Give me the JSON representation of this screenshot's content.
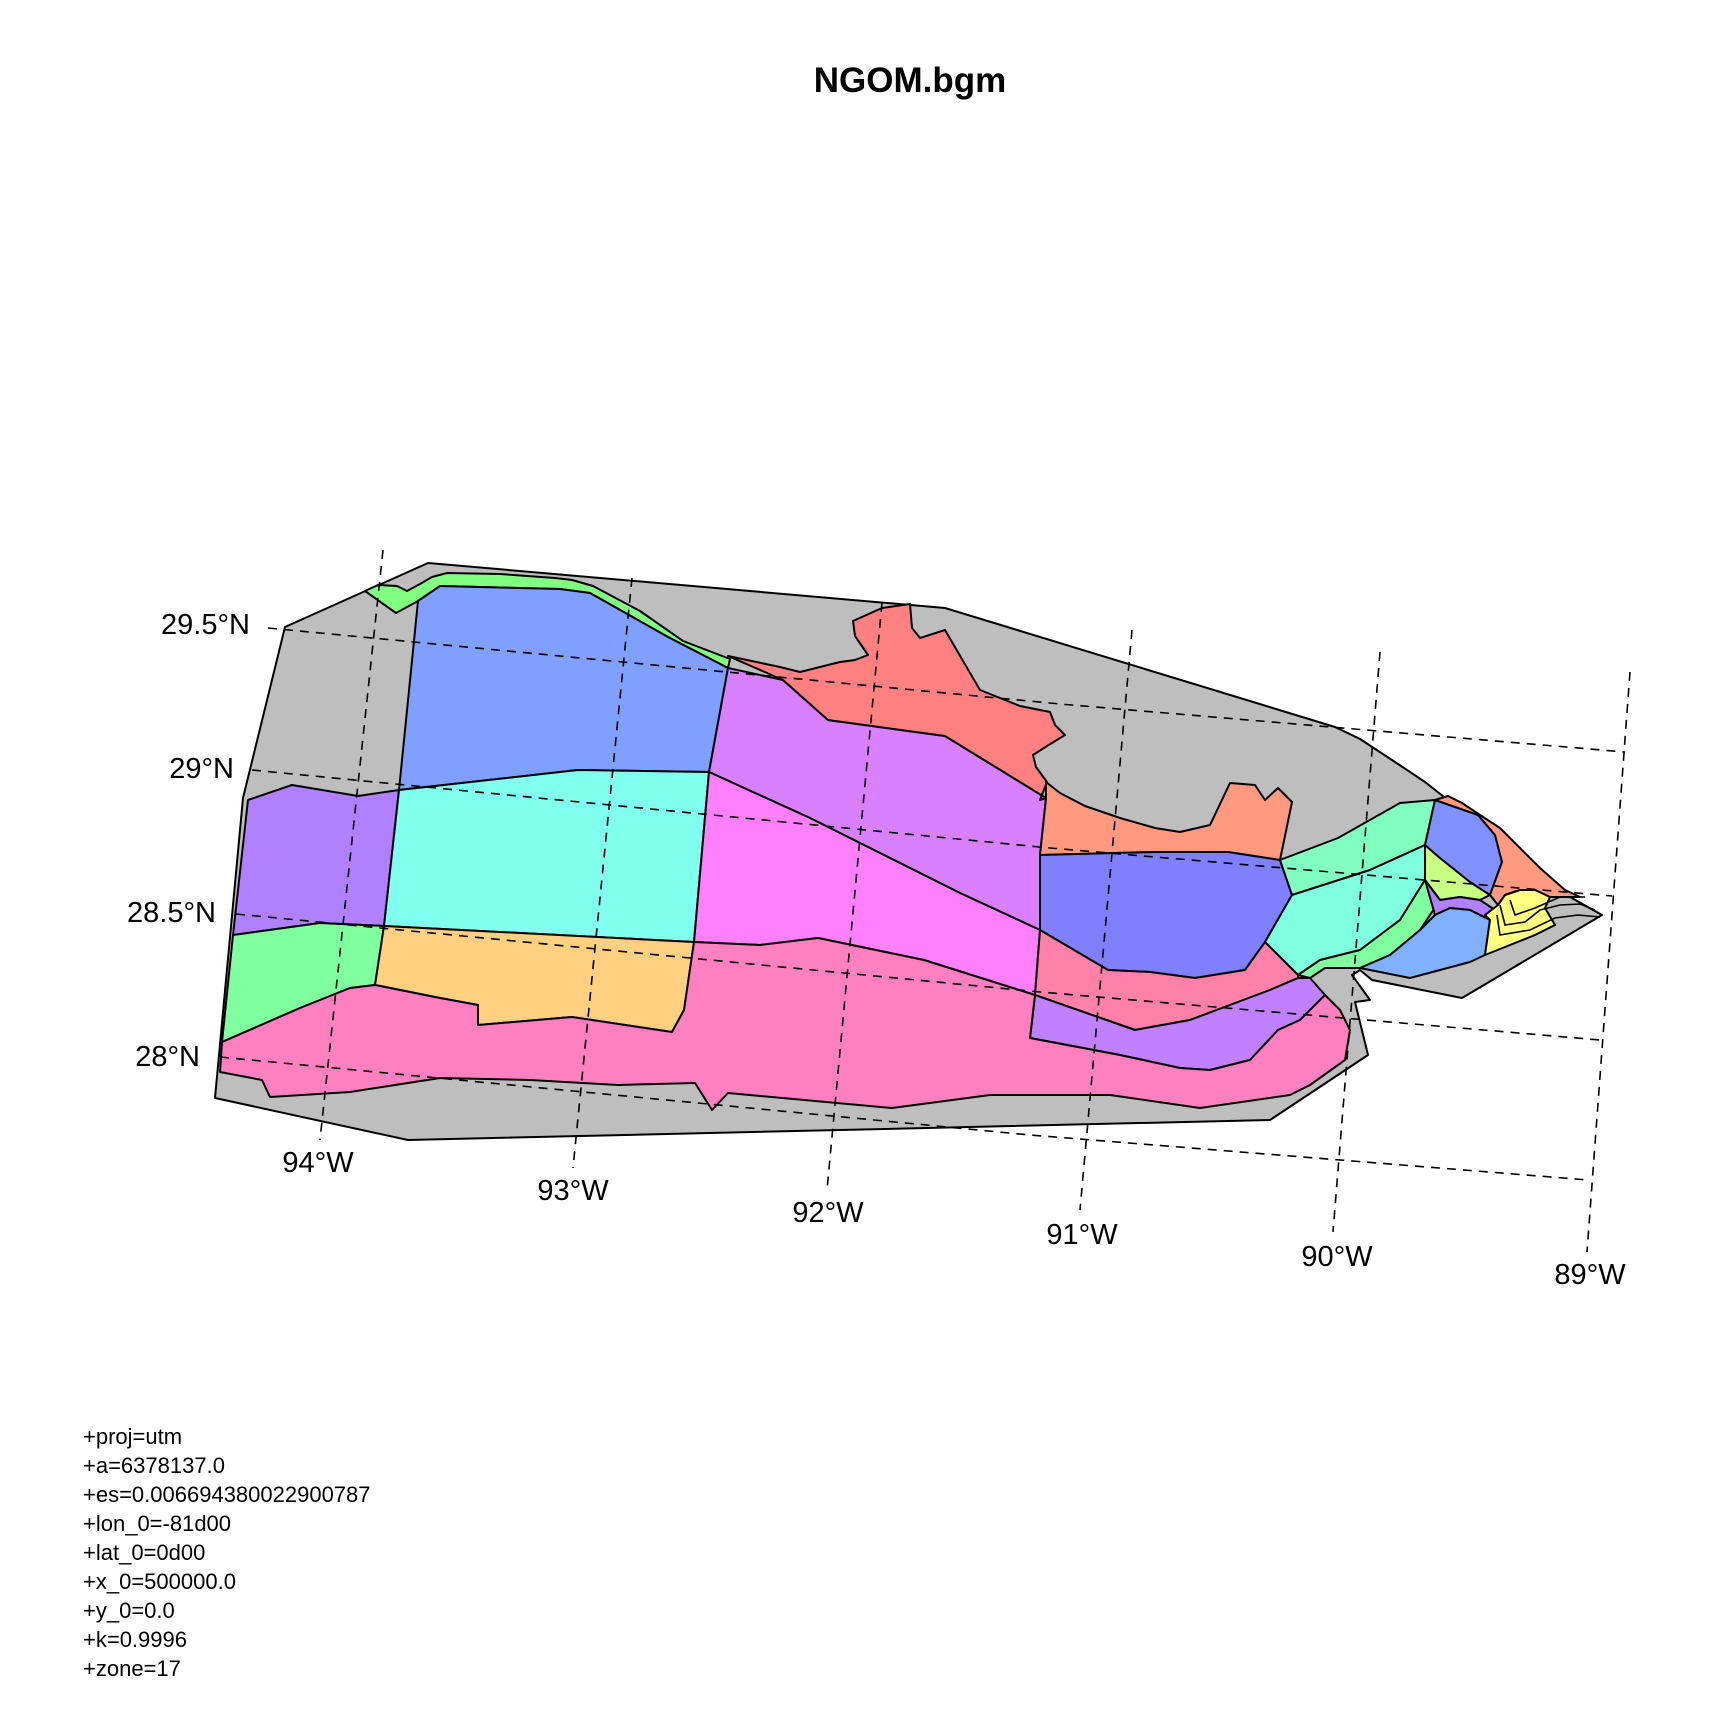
{
  "title": "NGOM.bgm",
  "lat_labels": [
    "29.5°N",
    "29°N",
    "28.5°N",
    "28°N"
  ],
  "lon_labels": [
    "94°W",
    "93°W",
    "92°W",
    "91°W",
    "90°W",
    "89°W"
  ],
  "proj_lines": [
    "+proj=utm",
    "+a=6378137.0",
    "+es=0.006694380022900787",
    "+lon_0=-81d00",
    "+lat_0=0d00",
    "+x_0=500000.0",
    "+y_0=0.0",
    "+k=0.9996",
    "+zone=17"
  ],
  "colors": {
    "boundary": "#bebebe",
    "coast_strip": "#80ff80",
    "blue": "#80a0ff",
    "violet_light": "#d880ff",
    "salmon": "#ff8080",
    "coral": "#ff9980",
    "cyan": "#80ffee",
    "purple": "#b080ff",
    "magenta": "#ff80ff",
    "green": "#80ff9f",
    "orange": "#ffd080",
    "pink": "#ff80c0",
    "periwinkle": "#8080ff",
    "rose": "#ff80a8",
    "lavender": "#c080ff",
    "mint": "#80ffc0",
    "aqua": "#80ffdf",
    "skyblue": "#80b0ff",
    "lime": "#c8ff80",
    "yellow": "#ffff80",
    "slate": "#8090ff"
  }
}
